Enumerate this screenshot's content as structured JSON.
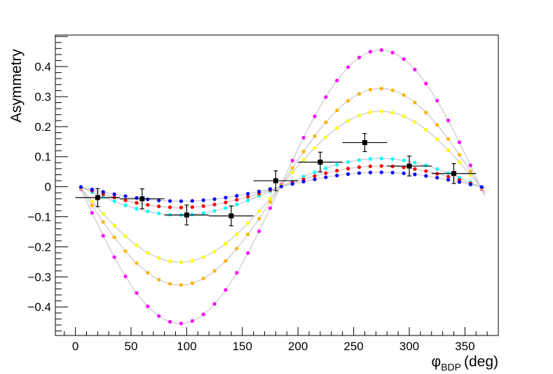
{
  "chart_data": {
    "type": "scatter",
    "title": "",
    "xlabel_symbol": "φ",
    "xlabel_sub": "BDP",
    "xlabel_unit": "(deg)",
    "ylabel": "Asymmetry",
    "xlim": [
      -18,
      380
    ],
    "ylim": [
      -0.495,
      0.505
    ],
    "x_ticks": [
      0,
      50,
      100,
      150,
      200,
      250,
      300,
      350
    ],
    "y_ticks": [
      -0.4,
      -0.3,
      -0.2,
      -0.1,
      0,
      0.1,
      0.2,
      0.3,
      0.4
    ],
    "x_tick_labels": [
      "0",
      "50",
      "100",
      "150",
      "200",
      "250",
      "300",
      "350"
    ],
    "y_tick_labels": [
      "−0.4",
      "−0.3",
      "−0.2",
      "−0.1",
      "0",
      "0.1",
      "0.2",
      "0.3",
      "0.4"
    ],
    "grid": false,
    "legend": "none",
    "curve_color": "#c8c8c8",
    "model_series": [
      {
        "color": "#ff00ff",
        "amplitude": 0.455
      },
      {
        "color": "#ffb300",
        "amplitude": 0.327
      },
      {
        "color": "#ffff00",
        "amplitude": 0.251
      },
      {
        "color": "#00ffff",
        "amplitude": 0.094
      },
      {
        "color": "#ff0000",
        "amplitude": 0.069
      },
      {
        "color": "#0000ff",
        "amplitude": 0.048
      }
    ],
    "model_x": [
      5,
      15,
      25,
      35,
      45,
      55,
      65,
      75,
      85,
      95,
      105,
      115,
      125,
      135,
      145,
      155,
      165,
      175,
      185,
      195,
      205,
      215,
      225,
      235,
      245,
      255,
      265,
      275,
      285,
      295,
      305,
      315,
      325,
      335,
      345,
      355,
      365
    ],
    "data_points": {
      "color": "#000000",
      "points": [
        {
          "x": 20,
          "y": -0.036,
          "xerr": 20,
          "yerr": 0.03
        },
        {
          "x": 60,
          "y": -0.04,
          "xerr": 20,
          "yerr": 0.033
        },
        {
          "x": 100,
          "y": -0.094,
          "xerr": 20,
          "yerr": 0.033
        },
        {
          "x": 140,
          "y": -0.097,
          "xerr": 20,
          "yerr": 0.033
        },
        {
          "x": 180,
          "y": 0.02,
          "xerr": 20,
          "yerr": 0.033
        },
        {
          "x": 220,
          "y": 0.082,
          "xerr": 20,
          "yerr": 0.033
        },
        {
          "x": 260,
          "y": 0.147,
          "xerr": 20,
          "yerr": 0.03
        },
        {
          "x": 300,
          "y": 0.069,
          "xerr": 20,
          "yerr": 0.033
        },
        {
          "x": 340,
          "y": 0.044,
          "xerr": 20,
          "yerr": 0.033
        }
      ]
    }
  }
}
